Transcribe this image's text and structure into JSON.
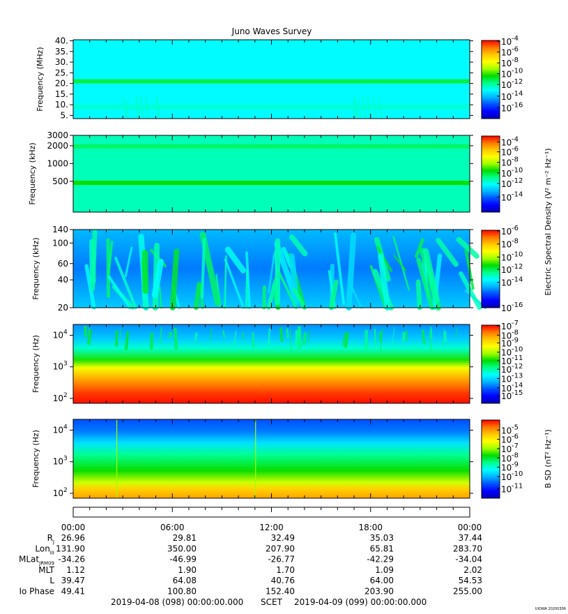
{
  "title": "Juno Waves Survey",
  "footer": {
    "start": "2019-04-08 (098) 00:00:00.000",
    "scet": "SCET",
    "end": "2019-04-09 (099) 00:00:00.000",
    "stamp": "UIOWA 20200306"
  },
  "colors": {
    "scale": [
      "#0000b4",
      "#0000ff",
      "#0050ff",
      "#00b4ff",
      "#00ffff",
      "#00ff8c",
      "#00dc00",
      "#a0ff00",
      "#ffff00",
      "#ffc800",
      "#ff7800",
      "#ff0000"
    ]
  },
  "time_axis": {
    "ticks": [
      "00:00",
      "06:00",
      "12:00",
      "18:00",
      "00:00"
    ]
  },
  "chart_data": [
    {
      "type": "heatmap",
      "name": "panel-1",
      "ylabel": "Frequency (MHz)",
      "yscale": "linear",
      "ylim": [
        3.5,
        40.5
      ],
      "yticks": [
        {
          "v": 40,
          "t": "40."
        },
        {
          "v": 35,
          "t": "35."
        },
        {
          "v": 30,
          "t": "30."
        },
        {
          "v": 25,
          "t": "25."
        },
        {
          "v": 20,
          "t": "20."
        },
        {
          "v": 15,
          "t": "15."
        },
        {
          "v": 10,
          "t": "10."
        },
        {
          "v": 5,
          "t": "5."
        }
      ],
      "bands": [
        {
          "v": 21,
          "level": 0.5
        },
        {
          "v": 9,
          "level": 0.4
        }
      ],
      "base_level": 0.36,
      "colorbar": {
        "ticks": [
          {
            "exp": "-4",
            "frac": 1.0
          },
          {
            "exp": "-6",
            "frac": 0.86
          },
          {
            "exp": "-8",
            "frac": 0.72
          },
          {
            "exp": "-10",
            "frac": 0.58
          },
          {
            "exp": "-12",
            "frac": 0.44
          },
          {
            "exp": "-14",
            "frac": 0.29
          },
          {
            "exp": "-16",
            "frac": 0.14
          }
        ]
      }
    },
    {
      "type": "heatmap",
      "name": "panel-2",
      "ylabel": "Frequency (kHz)",
      "yscale": "log",
      "ylim": [
        150,
        3000
      ],
      "yticks": [
        {
          "v": 3000,
          "t": "3000"
        },
        {
          "v": 2000,
          "t": "2000"
        },
        {
          "v": 1000,
          "t": "1000"
        },
        {
          "v": 500,
          "t": "500"
        }
      ],
      "bands": [
        {
          "v": 1950,
          "level": 0.48
        },
        {
          "v": 470,
          "level": 0.55
        }
      ],
      "base_level": 0.42,
      "colorbar": {
        "label": "Electric Spectral Density (V² m⁻² Hz⁻¹)",
        "ticks": [
          {
            "exp": "-4",
            "frac": 0.93
          },
          {
            "exp": "-6",
            "frac": 0.8
          },
          {
            "exp": "-8",
            "frac": 0.66
          },
          {
            "exp": "-10",
            "frac": 0.52
          },
          {
            "exp": "-12",
            "frac": 0.38
          },
          {
            "exp": "-14",
            "frac": 0.2
          }
        ]
      }
    },
    {
      "type": "heatmap",
      "name": "panel-3",
      "ylabel": "Frequency (kHz)",
      "yscale": "log",
      "ylim": [
        20,
        140
      ],
      "yticks": [
        {
          "v": 140,
          "t": "140"
        },
        {
          "v": 100,
          "t": "100"
        },
        {
          "v": 60,
          "t": "60"
        },
        {
          "v": 40,
          "t": "40"
        },
        {
          "v": 20,
          "t": "20"
        }
      ],
      "base_level": 0.22,
      "colorbar": {
        "ticks": [
          {
            "exp": "-6",
            "frac": 1.0
          },
          {
            "exp": "-8",
            "frac": 0.83
          },
          {
            "exp": "-10",
            "frac": 0.66
          },
          {
            "exp": "-12",
            "frac": 0.5
          },
          {
            "exp": "-14",
            "frac": 0.33
          },
          {
            "exp": "-16",
            "frac": 0.0
          }
        ]
      }
    },
    {
      "type": "heatmap",
      "name": "panel-4",
      "ylabel": "Frequency (Hz)",
      "yscale": "log",
      "ylim": [
        70,
        22000
      ],
      "yticks": [
        {
          "v": 10000,
          "base": "10",
          "exp": "4"
        },
        {
          "v": 1000,
          "base": "10",
          "exp": "3"
        },
        {
          "v": 100,
          "base": "10",
          "exp": "2"
        }
      ],
      "base_level": 0.2,
      "colorbar": {
        "ticks": [
          {
            "exp": "-7",
            "frac": 1.0
          },
          {
            "exp": "-8",
            "frac": 0.88
          },
          {
            "exp": "-9",
            "frac": 0.78
          },
          {
            "exp": "-10",
            "frac": 0.66
          },
          {
            "exp": "-11",
            "frac": 0.55
          },
          {
            "exp": "-12",
            "frac": 0.44
          },
          {
            "exp": "-13",
            "frac": 0.32
          },
          {
            "exp": "-14",
            "frac": 0.2
          },
          {
            "exp": "-15",
            "frac": 0.1
          }
        ]
      }
    },
    {
      "type": "heatmap",
      "name": "panel-5",
      "ylabel": "Frequency (Hz)",
      "yscale": "log",
      "ylim": [
        70,
        22000
      ],
      "yticks": [
        {
          "v": 10000,
          "base": "10",
          "exp": "4"
        },
        {
          "v": 1000,
          "base": "10",
          "exp": "3"
        },
        {
          "v": 100,
          "base": "10",
          "exp": "2"
        }
      ],
      "base_level": 0.1,
      "colorbar": {
        "label": "B SD (nT² Hz⁻¹)",
        "ticks": [
          {
            "exp": "-5",
            "frac": 0.88
          },
          {
            "exp": "-6",
            "frac": 0.76
          },
          {
            "exp": "-7",
            "frac": 0.64
          },
          {
            "exp": "-8",
            "frac": 0.52
          },
          {
            "exp": "-9",
            "frac": 0.4
          },
          {
            "exp": "-10",
            "frac": 0.28
          },
          {
            "exp": "-11",
            "frac": 0.12
          }
        ]
      }
    }
  ],
  "ephemeris": {
    "rows": [
      {
        "label": "R",
        "sub": "J",
        "values": [
          "26.96",
          "29.81",
          "32.49",
          "35.03",
          "37.44"
        ]
      },
      {
        "label": "Lon",
        "sub": "III",
        "values": [
          "131.90",
          "350.00",
          "207.90",
          "65.81",
          "283.70"
        ]
      },
      {
        "label": "MLat",
        "sub": "JRM09",
        "values": [
          "-34.26",
          "-46.99",
          "-26.77",
          "-42.29",
          "-34.04"
        ]
      },
      {
        "label": "MLT",
        "sub": "",
        "values": [
          "1.12",
          "1.90",
          "1.70",
          "1.09",
          "2.02"
        ]
      },
      {
        "label": "L",
        "sub": "",
        "values": [
          "39.47",
          "64.08",
          "40.76",
          "64.00",
          "54.53"
        ]
      },
      {
        "label": "Io Phase",
        "sub": "",
        "values": [
          "49.41",
          "100.80",
          "152.40",
          "203.90",
          "255.00"
        ]
      }
    ]
  }
}
